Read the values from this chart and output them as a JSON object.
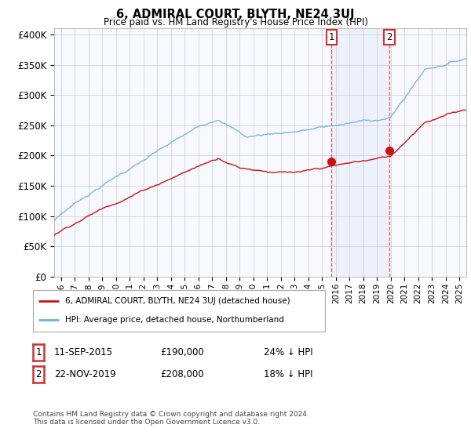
{
  "title": "6, ADMIRAL COURT, BLYTH, NE24 3UJ",
  "subtitle": "Price paid vs. HM Land Registry's House Price Index (HPI)",
  "yticks": [
    0,
    50000,
    100000,
    150000,
    200000,
    250000,
    300000,
    350000,
    400000
  ],
  "ytick_labels": [
    "£0",
    "£50K",
    "£100K",
    "£150K",
    "£200K",
    "£250K",
    "£300K",
    "£350K",
    "£400K"
  ],
  "xlim_start": 1995.5,
  "xlim_end": 2025.5,
  "ylim_min": 0,
  "ylim_max": 410000,
  "hpi_color": "#6ab0e0",
  "price_color": "#cc1111",
  "sale1_price": 190000,
  "sale1_pct": "24% ↓ HPI",
  "sale1_year": 2015.69,
  "sale1_date": "11-SEP-2015",
  "sale2_price": 208000,
  "sale2_pct": "18% ↓ HPI",
  "sale2_year": 2019.89,
  "sale2_date": "22-NOV-2019",
  "legend_line1": "6, ADMIRAL COURT, BLYTH, NE24 3UJ (detached house)",
  "legend_line2": "HPI: Average price, detached house, Northumberland",
  "footnote": "Contains HM Land Registry data © Crown copyright and database right 2024.\nThis data is licensed under the Open Government Licence v3.0.",
  "background_color": "#ffffff",
  "grid_color": "#cccccc"
}
